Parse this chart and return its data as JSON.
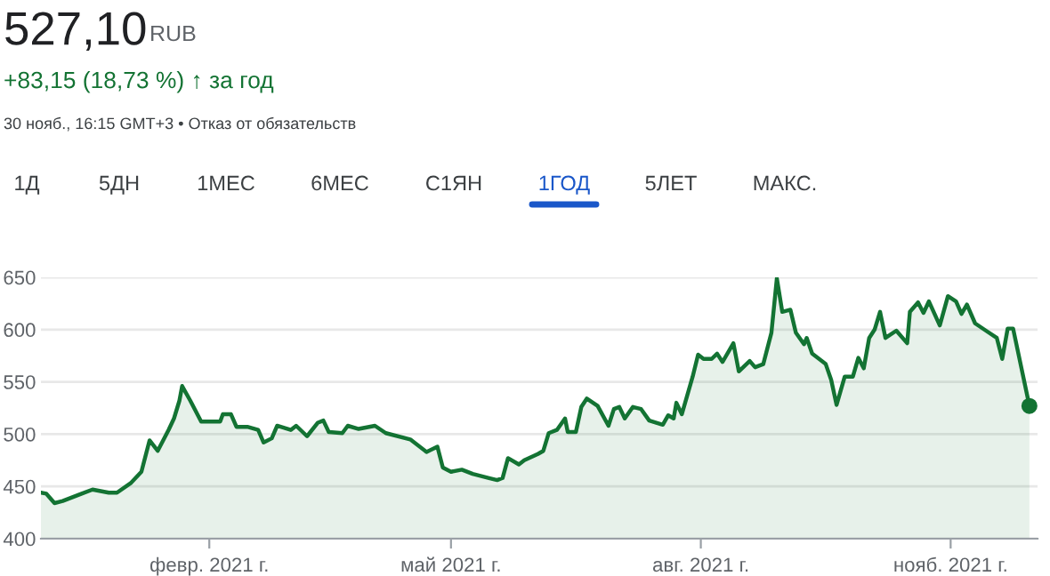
{
  "chart_data": {
    "type": "area",
    "title": "527,10",
    "annotations": [
      "RUB",
      "+83,15 (18,73 %) ↑ за год",
      "30 нояб., 16:15 GMT+3 • Отказ от обязательств",
      "1Д",
      "5ДН",
      "1МЕС",
      "6МЕС",
      "С1ЯН",
      "1ГОД",
      "5ЛЕТ",
      "МАКС."
    ],
    "series": [
      {
        "color": "#137333",
        "x": [
          "2020-12-01",
          "2020-12-03",
          "2020-12-06",
          "2020-12-09",
          "2020-12-16",
          "2020-12-20",
          "2020-12-26",
          "2020-12-29",
          "2021-01-03",
          "2021-01-07",
          "2021-01-10",
          "2021-01-13",
          "2021-01-17",
          "2021-01-19",
          "2021-01-21",
          "2021-01-22",
          "2021-01-25",
          "2021-01-29",
          "2021-02-05",
          "2021-02-06",
          "2021-02-09",
          "2021-02-11",
          "2021-02-15",
          "2021-02-19",
          "2021-02-21",
          "2021-02-24",
          "2021-02-26",
          "2021-03-03",
          "2021-03-05",
          "2021-03-09",
          "2021-03-13",
          "2021-03-15",
          "2021-03-17",
          "2021-03-22",
          "2021-03-24",
          "2021-03-28",
          "2021-04-03",
          "2021-04-07",
          "2021-04-16",
          "2021-04-22",
          "2021-04-26",
          "2021-04-28",
          "2021-05-01",
          "2021-05-05",
          "2021-05-09",
          "2021-05-15",
          "2021-05-18",
          "2021-05-20",
          "2021-05-22",
          "2021-05-26",
          "2021-05-28",
          "2021-06-02",
          "2021-06-04",
          "2021-06-06",
          "2021-06-09",
          "2021-06-12",
          "2021-06-13",
          "2021-06-16",
          "2021-06-18",
          "2021-06-20",
          "2021-06-24",
          "2021-06-28",
          "2021-06-30",
          "2021-07-02",
          "2021-07-04",
          "2021-07-07",
          "2021-07-10",
          "2021-07-13",
          "2021-07-18",
          "2021-07-20",
          "2021-07-22",
          "2021-07-23",
          "2021-07-25",
          "2021-07-29",
          "2021-07-31",
          "2021-08-02",
          "2021-08-05",
          "2021-08-07",
          "2021-08-09",
          "2021-08-13",
          "2021-08-15",
          "2021-08-19",
          "2021-08-21",
          "2021-08-24",
          "2021-08-27",
          "2021-08-29",
          "2021-08-31",
          "2021-09-03",
          "2021-09-05",
          "2021-09-08",
          "2021-09-09",
          "2021-09-11",
          "2021-09-16",
          "2021-09-18",
          "2021-09-20",
          "2021-09-23",
          "2021-09-26",
          "2021-09-28",
          "2021-09-30",
          "2021-10-02",
          "2021-10-04",
          "2021-10-06",
          "2021-10-08",
          "2021-10-12",
          "2021-10-16",
          "2021-10-17",
          "2021-10-20",
          "2021-10-22",
          "2021-10-24",
          "2021-10-28",
          "2021-10-31",
          "2021-11-03",
          "2021-11-05",
          "2021-11-07",
          "2021-11-10",
          "2021-11-14",
          "2021-11-18",
          "2021-11-20",
          "2021-11-22",
          "2021-11-24",
          "2021-11-30"
        ],
        "values": [
          444,
          443,
          434,
          436,
          443,
          447,
          444,
          444,
          453,
          464,
          494,
          484,
          504,
          515,
          532,
          546,
          532,
          512,
          512,
          519,
          519,
          507,
          507,
          504,
          492,
          496,
          508,
          504,
          508,
          498,
          511,
          513,
          502,
          501,
          508,
          505,
          508,
          501,
          495,
          483,
          488,
          468,
          464,
          466,
          462,
          458,
          456,
          458,
          477,
          471,
          475,
          481,
          484,
          501,
          504,
          515,
          502,
          502,
          526,
          534,
          527,
          508,
          524,
          526,
          515,
          526,
          524,
          513,
          509,
          518,
          515,
          530,
          519,
          555,
          576,
          572,
          572,
          577,
          569,
          587,
          560,
          570,
          564,
          567,
          597,
          649,
          617,
          619,
          597,
          586,
          592,
          577,
          567,
          552,
          528,
          555,
          555,
          573,
          563,
          592,
          600,
          617,
          592,
          599,
          587,
          617,
          626,
          616,
          627,
          604,
          632,
          627,
          615,
          624,
          606,
          599,
          592,
          572,
          601,
          601,
          527
        ]
      },
      {
        "type": "scatter",
        "color": "#137333",
        "marker": "circle",
        "x": [
          "2021-11-30"
        ],
        "values": [
          527
        ]
      }
    ],
    "xticks": [
      {
        "value": "2021-02-01",
        "label": "февр. 2021 г."
      },
      {
        "value": "2021-05-01",
        "label": "май 2021 г."
      },
      {
        "value": "2021-08-01",
        "label": "авг. 2021 г."
      },
      {
        "value": "2021-11-01",
        "label": "нояб. 2021 г."
      }
    ],
    "xlim": [
      "2020-12-01",
      "2021-12-03"
    ],
    "ylim": [
      400,
      650
    ],
    "yticks": [
      400,
      450,
      500,
      550,
      600,
      650
    ],
    "grid": "y"
  }
}
